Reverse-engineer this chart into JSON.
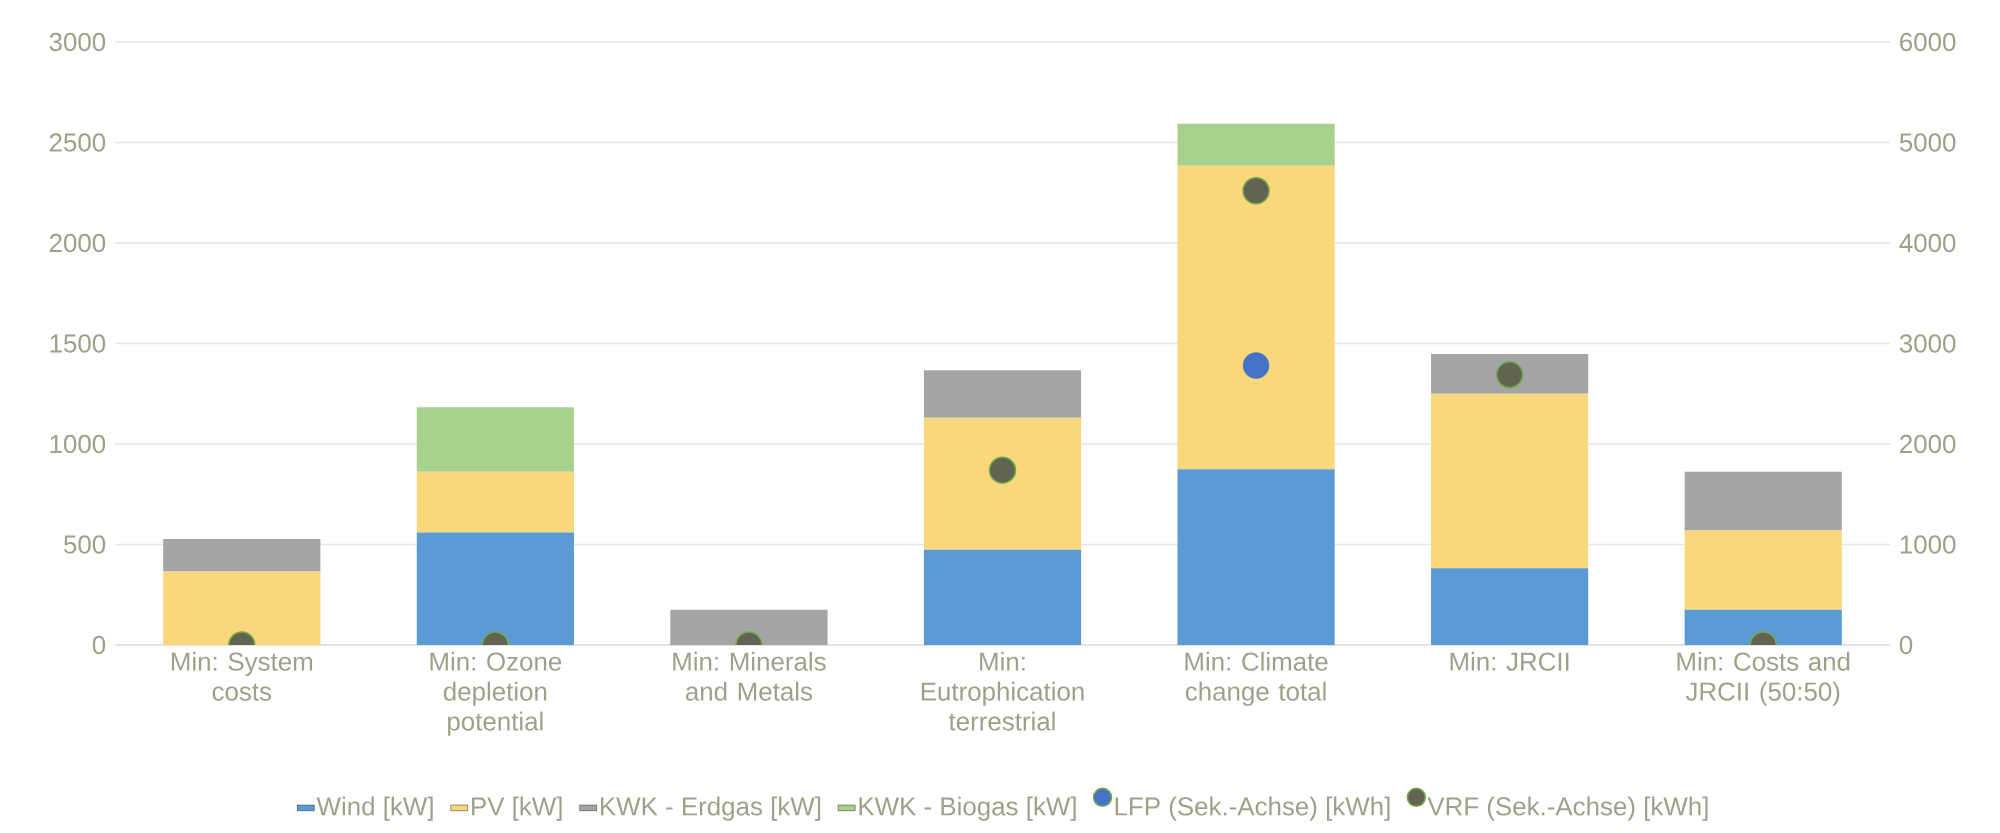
{
  "chart_data": {
    "type": "bar",
    "stacked": true,
    "grid": "y",
    "legend": "bottom",
    "categories": [
      "Min: System costs",
      "Min: Ozone depletion potential",
      "Min: Minerals and Metals",
      "Min: Eutrophication terrestrial",
      "Min: Climate change total",
      "Min: JRCII",
      "Min: Costs and JRCII (50:50)"
    ],
    "series": [
      {
        "name": "Wind [kW]",
        "color": "#5b9bd5",
        "values": [
          0,
          560,
          0,
          474,
          875,
          382,
          176
        ]
      },
      {
        "name": "PV [kW]",
        "color": "#f8d77d",
        "values": [
          366,
          302,
          0,
          656,
          1509,
          868,
          394
        ]
      },
      {
        "name": "KWK - Erdgas  [kW]",
        "color": "#a5a5a5",
        "values": [
          161,
          0,
          176,
          237,
          0,
          198,
          292
        ]
      },
      {
        "name": "KWK - Biogas [kW]",
        "color": "#a9d18e",
        "values": [
          0,
          321,
          0,
          0,
          209,
          0,
          0
        ]
      },
      {
        "name": "LFP (Sek.-Achse) [kWh]",
        "type": "scatter",
        "axis": "y2",
        "marker": "circle",
        "color": "#4472c4",
        "values": [
          null,
          null,
          null,
          null,
          2780,
          null,
          null
        ]
      },
      {
        "name": "VRF (Sek.-Achse) [kWh]",
        "type": "scatter",
        "axis": "y2",
        "marker": "circle",
        "color": "#636354",
        "values": [
          0,
          0,
          0,
          1740,
          4520,
          2690,
          0
        ]
      }
    ],
    "ylim": [
      0,
      3000
    ],
    "yticks": [
      0,
      500,
      1000,
      1500,
      2000,
      2500,
      3000
    ],
    "y2lim": [
      0,
      6000
    ],
    "y2ticks": [
      0,
      1000,
      2000,
      3000,
      4000,
      5000,
      6000
    ]
  }
}
